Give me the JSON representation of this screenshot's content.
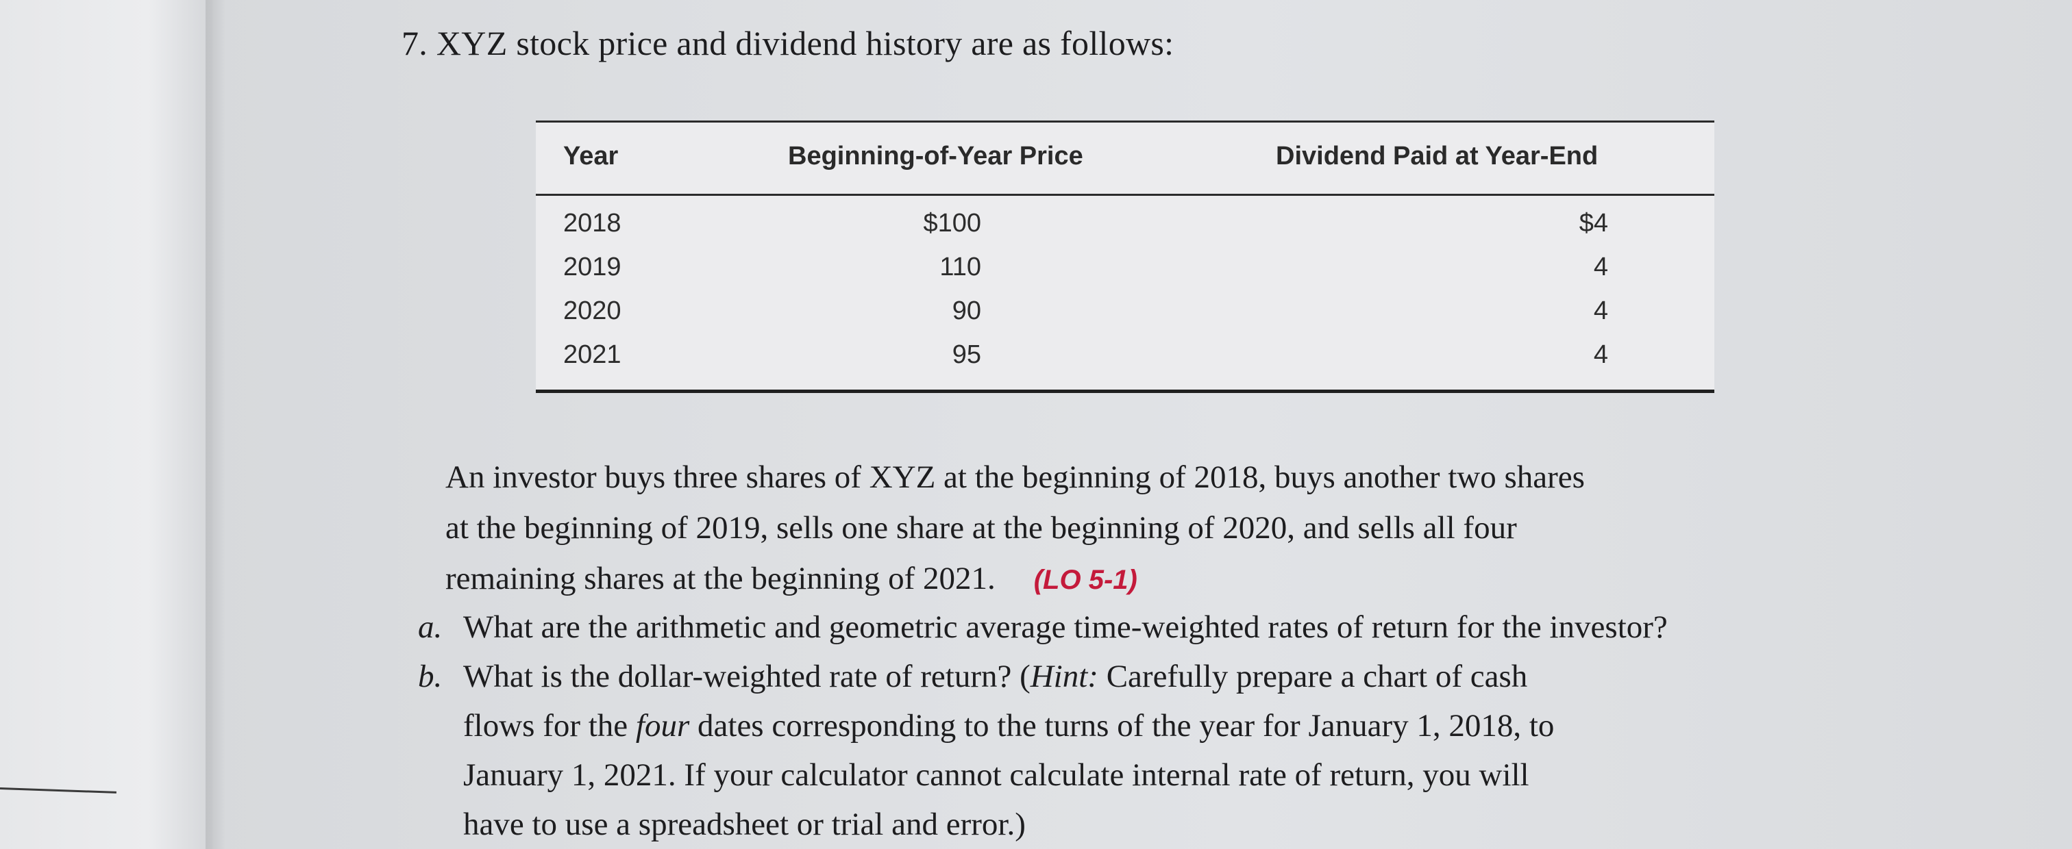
{
  "problem": {
    "title": "7. XYZ stock price and dividend history are as follows:"
  },
  "table": {
    "headers": [
      "Year",
      "Beginning-of-Year Price",
      "Dividend Paid at Year-End"
    ],
    "rows": [
      {
        "year": "2018",
        "price": "$100",
        "dividend": "$4"
      },
      {
        "year": "2019",
        "price": "110",
        "dividend": "4"
      },
      {
        "year": "2020",
        "price": "90",
        "dividend": "4"
      },
      {
        "year": "2021",
        "price": "95",
        "dividend": "4"
      }
    ]
  },
  "paragraph": {
    "line1": "An investor buys three shares of XYZ at the beginning of 2018, buys another two shares",
    "line2": "at the beginning of 2019, sells one share at the beginning of 2020, and sells all four",
    "line3": "remaining shares at the beginning of 2021.",
    "lo_tag": "(LO 5-1)"
  },
  "questions": {
    "a": {
      "marker": "a.",
      "text": "What are the arithmetic and geometric average time-weighted rates of return for the investor?"
    },
    "b": {
      "marker": "b.",
      "line1_pre": "What is the dollar-weighted rate of return? (",
      "line1_hint": "Hint:",
      "line1_post": " Carefully prepare a chart of cash",
      "line2_pre": "flows for the ",
      "line2_emph": "four",
      "line2_post": " dates corresponding to the turns of the year for January 1, 2018, to",
      "line3": "January 1, 2021. If your calculator cannot calculate internal rate of return, you will",
      "line4": "have to use a spreadsheet or trial and error.)"
    }
  },
  "colors": {
    "lo_tag": "#c41a3b",
    "text": "#1d1d1f"
  }
}
